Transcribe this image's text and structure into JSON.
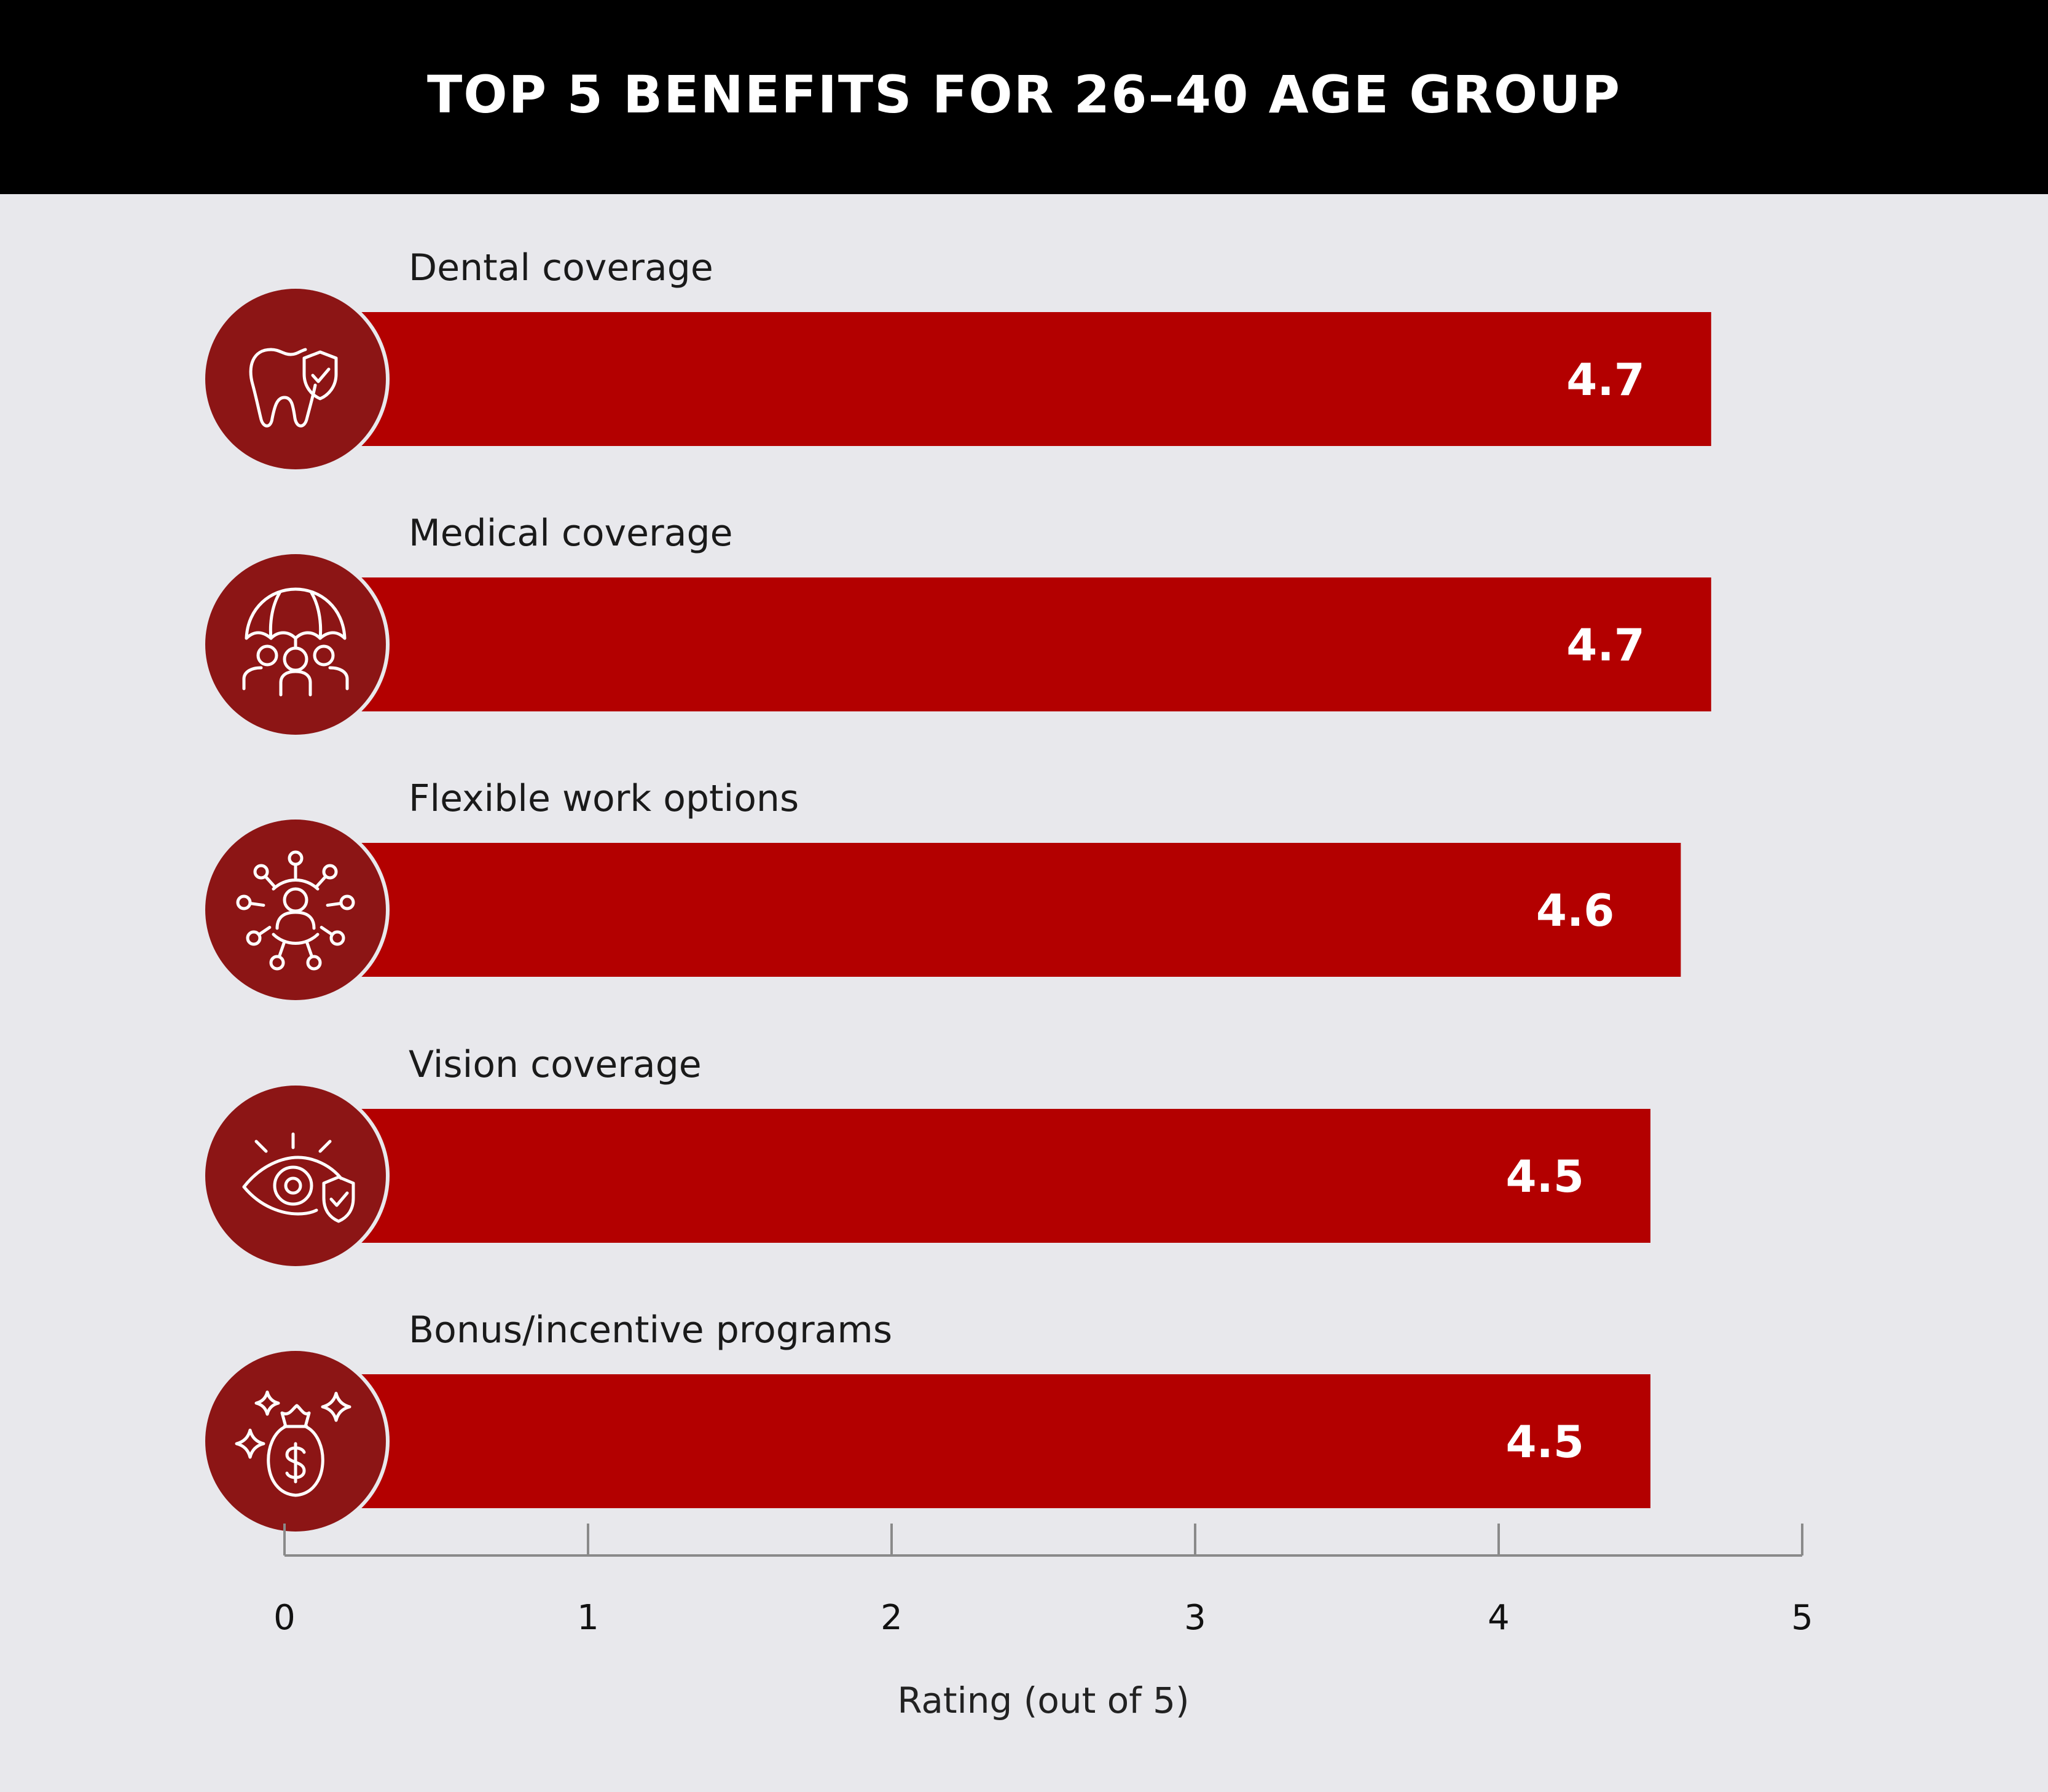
{
  "header": {
    "title": "TOP 5 BENEFITS FOR 26–40 AGE GROUP"
  },
  "colors": {
    "bar": "#b30000",
    "icon_circle": "#8c1515",
    "header_bg": "#000000",
    "background": "#e8e8ec"
  },
  "chart_data": {
    "type": "bar",
    "orientation": "horizontal",
    "title": "TOP 5 BENEFITS FOR 26–40 AGE GROUP",
    "categories": [
      "Dental coverage",
      "Medical coverage",
      "Flexible work options",
      "Vision coverage",
      "Bonus/incentive programs"
    ],
    "values": [
      4.7,
      4.7,
      4.6,
      4.5,
      4.5
    ],
    "value_labels": [
      "4.7",
      "4.7",
      "4.6",
      "4.5",
      "4.5"
    ],
    "icons": [
      "tooth-shield-icon",
      "umbrella-family-icon",
      "network-person-icon",
      "eye-shield-icon",
      "money-bag-icon"
    ],
    "xlabel": "Rating (out of 5)",
    "xlim": [
      0,
      5
    ],
    "xticks": [
      "0",
      "1",
      "2",
      "3",
      "4",
      "5"
    ],
    "grid": false,
    "legend": "none"
  }
}
